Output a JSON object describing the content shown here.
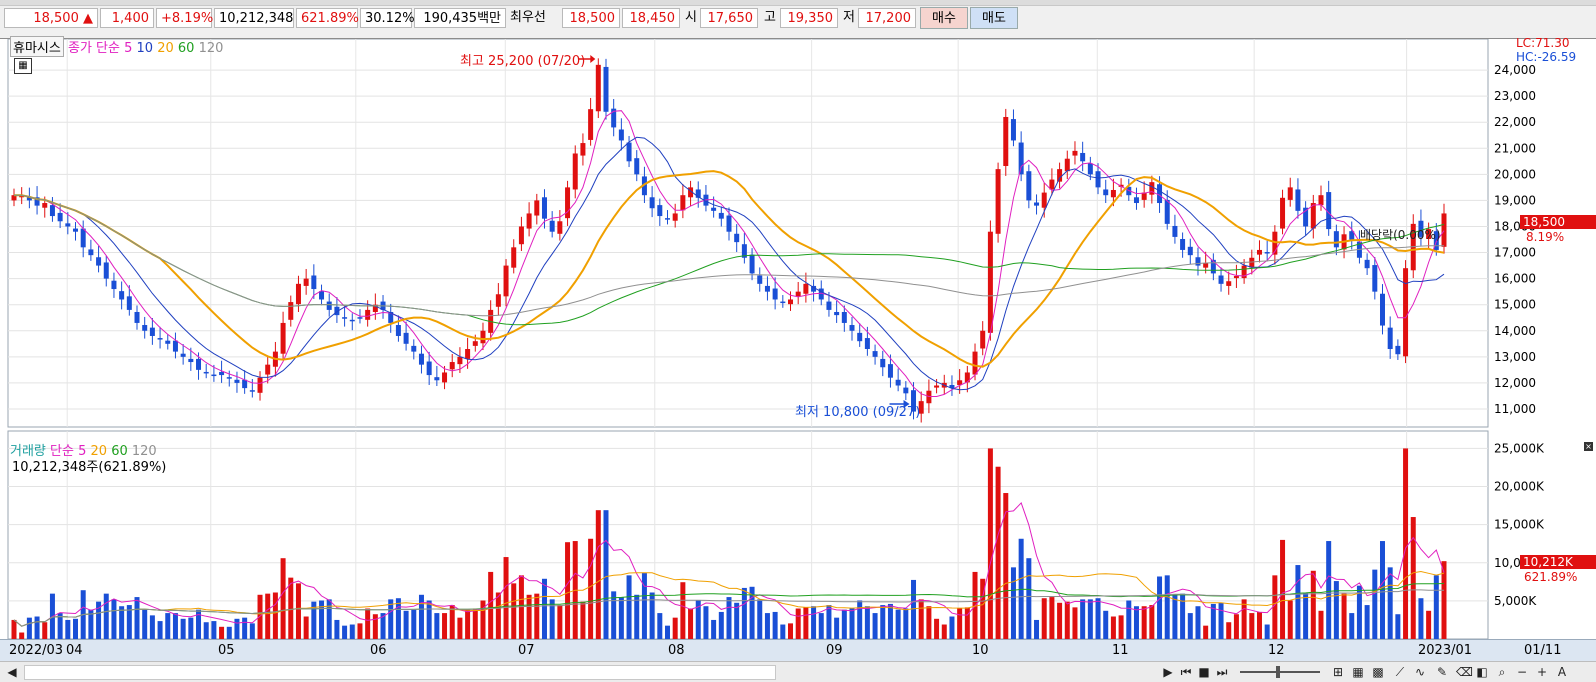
{
  "quote_bar": {
    "price": "18,500",
    "change_arrow": "▲",
    "change": "1,400",
    "change_pct": "+8.19%",
    "volume": "10,212,348",
    "volume_ratio": "621.89%",
    "turnover_rate": "30.12%",
    "trade_value": "190,435백만",
    "best_bid_label": "최우선",
    "best_ask": "18,500",
    "best_bid": "18,450",
    "open_label": "시",
    "open": "17,650",
    "high_label": "고",
    "high": "19,350",
    "low_label": "저",
    "low": "17,200",
    "buy_label": "매수",
    "sell_label": "매도"
  },
  "price_pane": {
    "stock_name": "휴마시스",
    "ma_label": "종가 단순",
    "ma_periods": [
      "5",
      "10",
      "20",
      "60",
      "120"
    ],
    "lc": "LC:71.30",
    "hc": "HC:-26.59",
    "current_price_tag": "18,500",
    "current_pct_tag": "8.19%",
    "high_annotation": "최고 25,200 (07/20)",
    "low_annotation": "최저 10,800 (09/27)",
    "dividend_note": "배당락(0.00%)",
    "y_ticks": [
      "24,000",
      "23,000",
      "22,000",
      "21,000",
      "20,000",
      "19,000",
      "18,000",
      "17,000",
      "16,000",
      "15,000",
      "14,000",
      "13,000",
      "12,000",
      "11,000"
    ]
  },
  "volume_pane": {
    "label": "거래량",
    "ma_label": "단순",
    "ma_periods": [
      "5",
      "20",
      "60",
      "120"
    ],
    "summary": "10,212,348주(621.89%)",
    "current_tag": "10,212K",
    "current_pct": "621.89%",
    "y_ticks": [
      "25,000K",
      "20,000K",
      "15,000K",
      "10,000K",
      "5,000K"
    ]
  },
  "date_axis": [
    "2022/03",
    "04",
    "05",
    "06",
    "07",
    "08",
    "09",
    "10",
    "11",
    "12",
    "2023/01",
    "01/11"
  ],
  "colors": {
    "up": "#e01010",
    "down": "#1a4fd6",
    "ma5": "#e020c0",
    "ma10": "#2040c0",
    "ma20": "#f0a000",
    "ma60": "#20a020",
    "ma120": "#909090"
  },
  "chart_data": {
    "type": "candlestick",
    "closes": [
      19200,
      19200,
      19000,
      18800,
      18900,
      18400,
      18200,
      18000,
      17800,
      17200,
      16900,
      16500,
      16000,
      15600,
      15200,
      14800,
      14300,
      14000,
      13800,
      13700,
      13500,
      13200,
      13000,
      12800,
      12500,
      12400,
      12300,
      12300,
      12200,
      12000,
      11800,
      11700,
      12200,
      12700,
      13200,
      14300,
      15100,
      15800,
      16000,
      15600,
      15200,
      14800,
      14600,
      14500,
      14400,
      14500,
      14800,
      15000,
      14800,
      14300,
      13800,
      13500,
      13200,
      12700,
      12300,
      12100,
      12400,
      12800,
      13000,
      13300,
      13600,
      14000,
      14800,
      15400,
      16500,
      17200,
      18000,
      18500,
      19000,
      18300,
      17800,
      18200,
      19500,
      20800,
      21200,
      22500,
      24200,
      22400,
      21800,
      21300,
      20500,
      20000,
      19200,
      18700,
      18400,
      18300,
      18500,
      19200,
      19500,
      19100,
      18800,
      18600,
      18300,
      17800,
      17400,
      16800,
      16200,
      15800,
      15500,
      15200,
      15100,
      15200,
      15500,
      15800,
      15500,
      15200,
      14800,
      14600,
      14300,
      14000,
      13600,
      13300,
      13000,
      12600,
      12200,
      11900,
      11600,
      10900,
      11300,
      11700,
      11900,
      12000,
      11800,
      12100,
      12400,
      13200,
      14000,
      17800,
      20200,
      22200,
      21300,
      20000,
      19000,
      18800,
      19300,
      19800,
      20200,
      20600,
      20900,
      20500,
      20000,
      19500,
      19200,
      19400,
      19600,
      19200,
      18900,
      19300,
      19700,
      18900,
      18100,
      17600,
      17100,
      16900,
      16500,
      16600,
      16200,
      15800,
      15900,
      16100,
      16500,
      16800,
      17100,
      17000,
      17800,
      19100,
      19500,
      18600,
      18000,
      18900,
      19200,
      17900,
      17200,
      17700,
      17500,
      16800,
      16400,
      15500,
      14200,
      13300,
      13100,
      16400,
      18100,
      17600,
      17900,
      17100,
      18500
    ]
  }
}
